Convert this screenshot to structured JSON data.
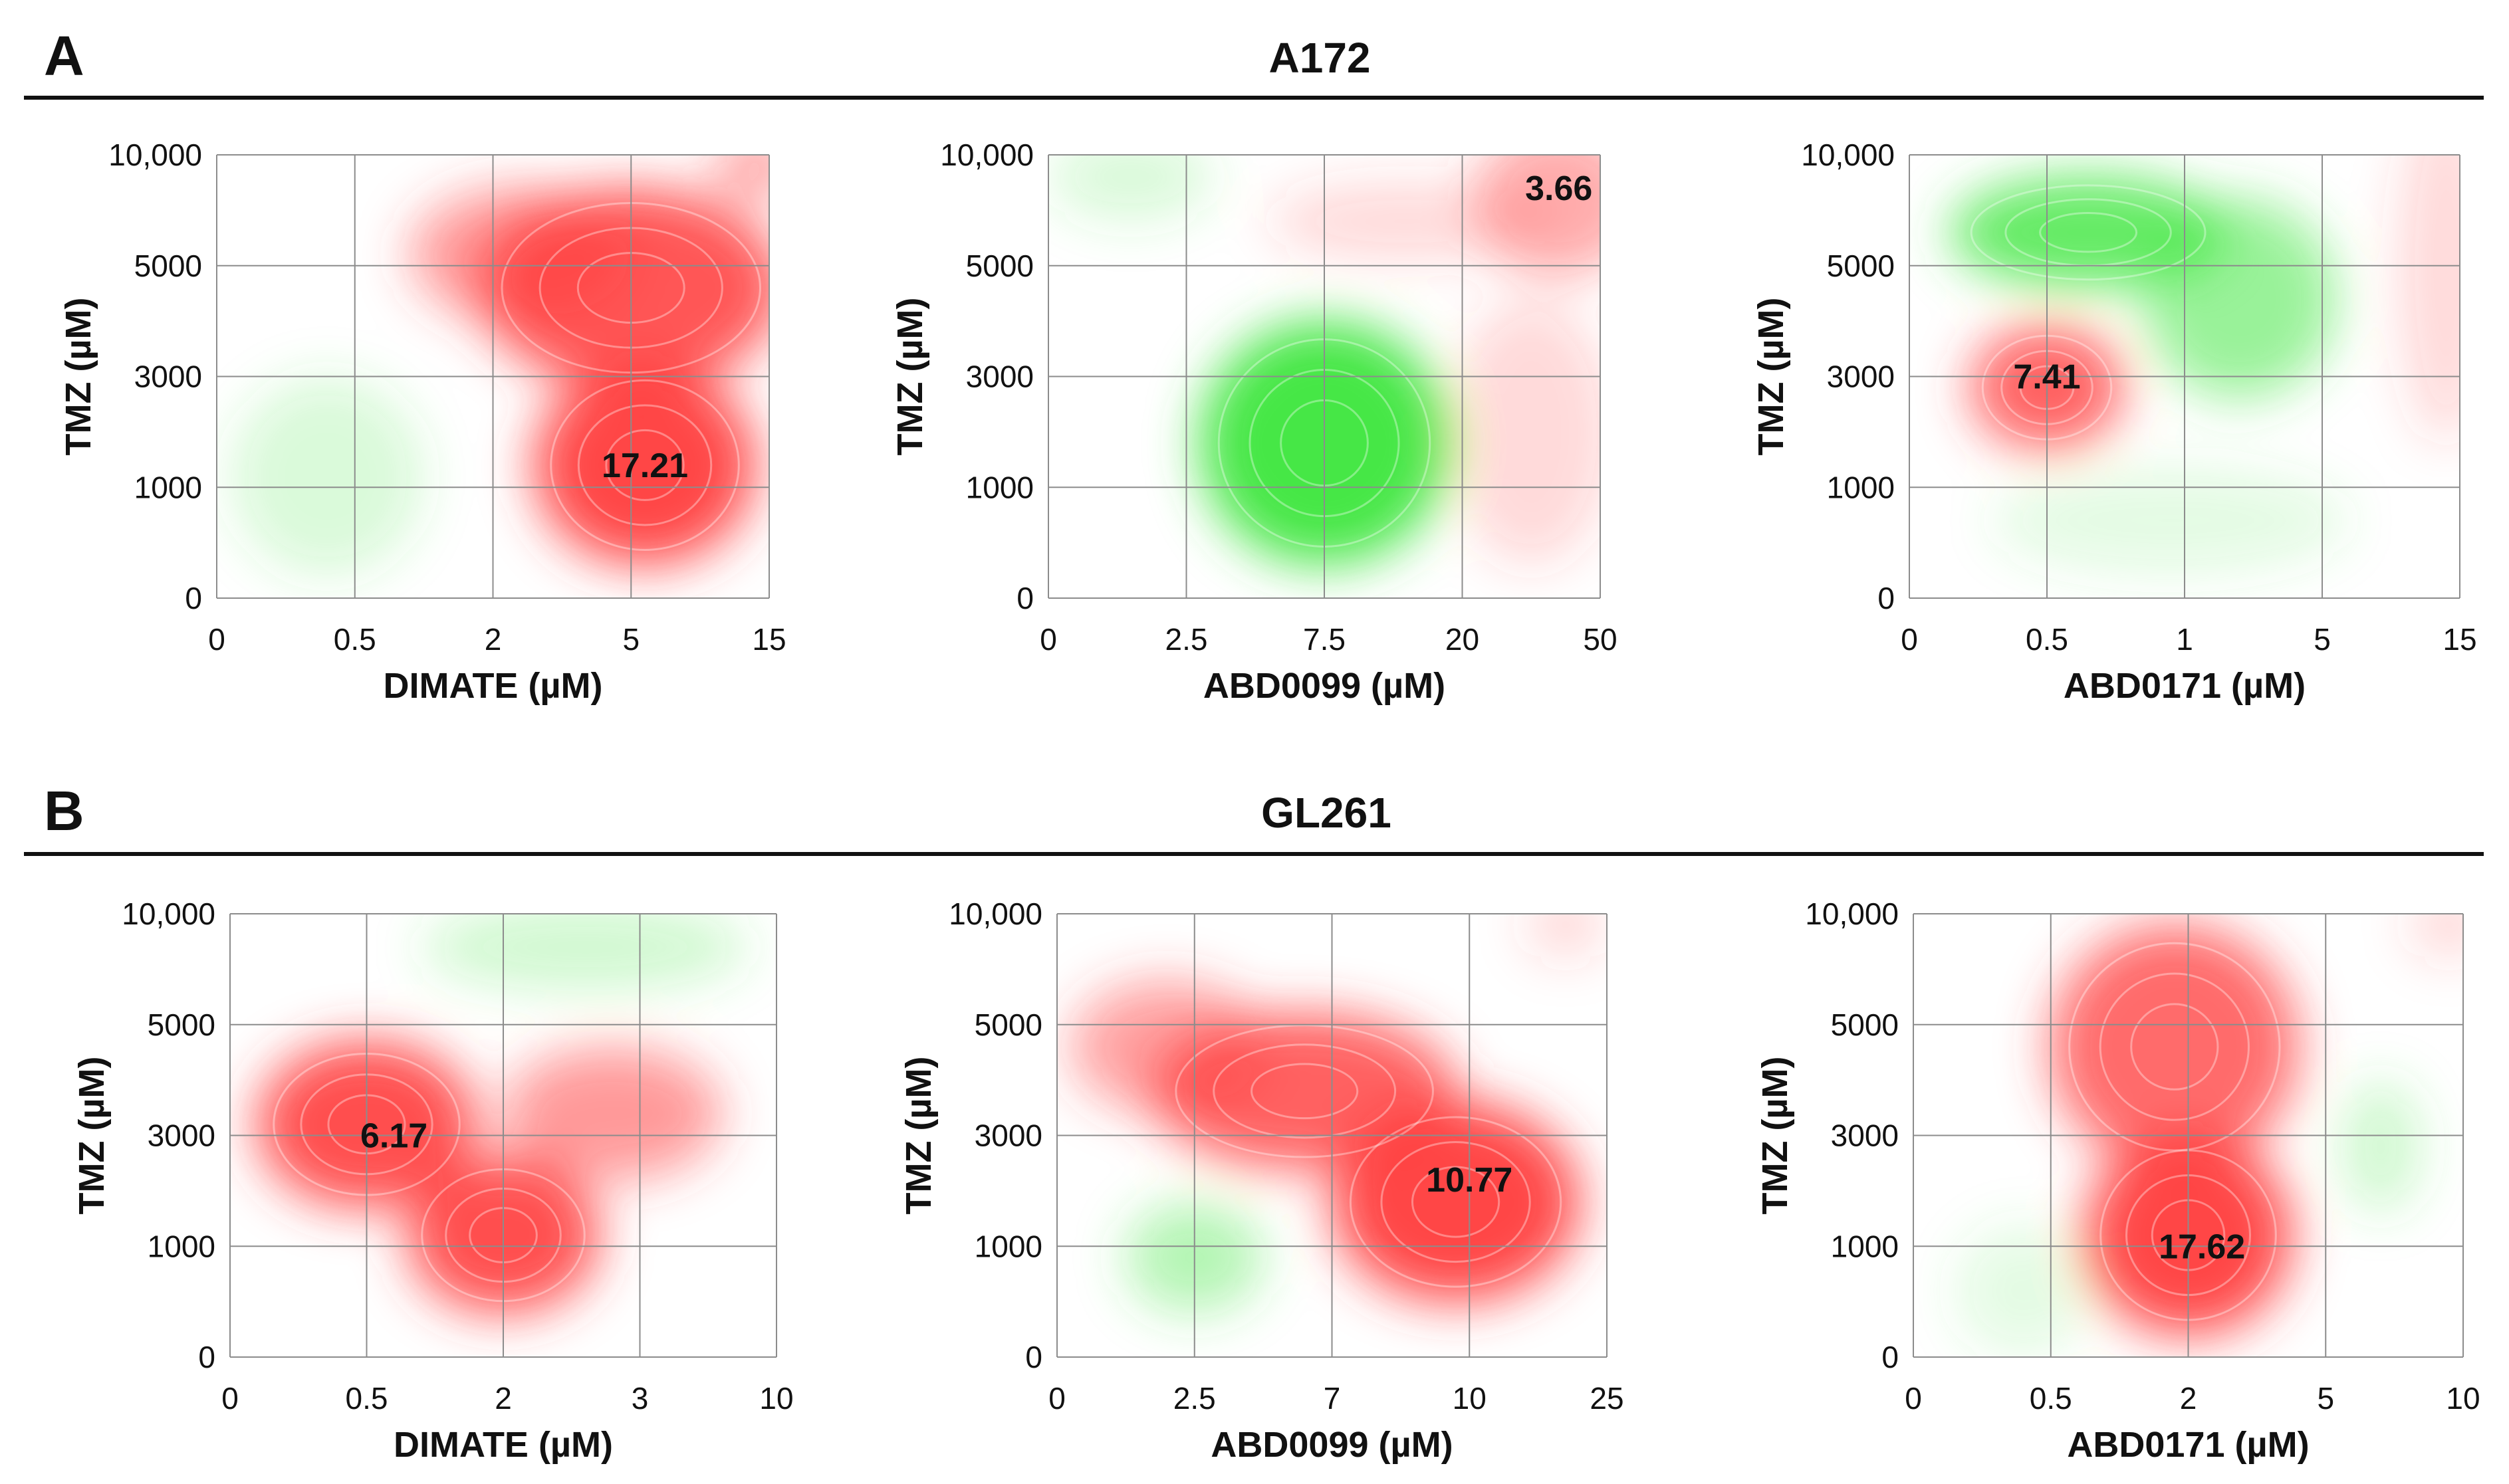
{
  "rows": [
    {
      "letter": "A",
      "title": "A172"
    },
    {
      "letter": "B",
      "title": "GL261"
    }
  ],
  "colors": {
    "synergy": "#ff3b3b",
    "antagonism": "#3de63d",
    "grid": "#8c8c8c",
    "text": "#111111"
  },
  "chart_data": [
    {
      "type": "heatmap",
      "panel": "A",
      "cell_line": "A172",
      "xlabel": "DIMATE (µM)",
      "ylabel": "TMZ (µM)",
      "x_ticks": [
        "0",
        "0.5",
        "2",
        "5",
        "15"
      ],
      "y_ticks": [
        "0",
        "1000",
        "3000",
        "5000",
        "10,000"
      ],
      "peak_label": "17.21",
      "peak_at": [
        3.1,
        1.2
      ],
      "blobs": [
        {
          "cx": 3.1,
          "cy": 1.2,
          "rx": 0.8,
          "ry": 0.9,
          "strength": 1.0,
          "type": "synergy"
        },
        {
          "cx": 3.0,
          "cy": 2.8,
          "rx": 1.1,
          "ry": 0.9,
          "strength": 0.9,
          "type": "synergy"
        },
        {
          "cx": 2.2,
          "cy": 3.1,
          "rx": 0.8,
          "ry": 0.6,
          "strength": 0.55,
          "type": "synergy"
        },
        {
          "cx": 3.9,
          "cy": 3.9,
          "rx": 0.3,
          "ry": 0.3,
          "strength": 0.5,
          "type": "synergy"
        },
        {
          "cx": 0.8,
          "cy": 1.1,
          "rx": 0.7,
          "ry": 0.9,
          "strength": 0.2,
          "type": "antagonism"
        }
      ]
    },
    {
      "type": "heatmap",
      "panel": "A",
      "cell_line": "A172",
      "xlabel": "ABD0099 (µM)",
      "ylabel": "TMZ (µM)",
      "x_ticks": [
        "0",
        "2.5",
        "7.5",
        "20",
        "50"
      ],
      "y_ticks": [
        "0",
        "1000",
        "3000",
        "5000",
        "10,000"
      ],
      "peak_label": "3.66",
      "peak_at": [
        3.7,
        3.7
      ],
      "blobs": [
        {
          "cx": 2.0,
          "cy": 1.4,
          "rx": 0.9,
          "ry": 1.1,
          "strength": 1.0,
          "type": "antagonism"
        },
        {
          "cx": 0.6,
          "cy": 3.8,
          "rx": 0.6,
          "ry": 0.4,
          "strength": 0.2,
          "type": "antagonism"
        },
        {
          "cx": 3.7,
          "cy": 3.6,
          "rx": 0.6,
          "ry": 0.7,
          "strength": 0.45,
          "type": "synergy"
        },
        {
          "cx": 2.6,
          "cy": 3.4,
          "rx": 1.0,
          "ry": 0.35,
          "strength": 0.2,
          "type": "synergy"
        },
        {
          "cx": 3.5,
          "cy": 1.5,
          "rx": 0.6,
          "ry": 1.2,
          "strength": 0.2,
          "type": "synergy"
        }
      ]
    },
    {
      "type": "heatmap",
      "panel": "A",
      "cell_line": "A172",
      "xlabel": "ABD0171 (µM)",
      "ylabel": "TMZ (µM)",
      "x_ticks": [
        "0",
        "0.5",
        "1",
        "5",
        "15"
      ],
      "y_ticks": [
        "0",
        "1000",
        "3000",
        "5000",
        "10,000"
      ],
      "peak_label": "7.41",
      "peak_at": [
        1.0,
        2.0
      ],
      "blobs": [
        {
          "cx": 1.0,
          "cy": 1.9,
          "rx": 0.55,
          "ry": 0.55,
          "strength": 0.85,
          "type": "synergy"
        },
        {
          "cx": 3.9,
          "cy": 3.0,
          "rx": 0.35,
          "ry": 1.6,
          "strength": 0.2,
          "type": "synergy"
        },
        {
          "cx": 1.3,
          "cy": 3.3,
          "rx": 1.0,
          "ry": 0.5,
          "strength": 0.85,
          "type": "antagonism"
        },
        {
          "cx": 2.4,
          "cy": 2.7,
          "rx": 0.7,
          "ry": 0.9,
          "strength": 0.55,
          "type": "antagonism"
        },
        {
          "cx": 1.9,
          "cy": 0.7,
          "rx": 1.3,
          "ry": 0.5,
          "strength": 0.15,
          "type": "antagonism"
        }
      ]
    },
    {
      "type": "heatmap",
      "panel": "B",
      "cell_line": "GL261",
      "xlabel": "DIMATE (µM)",
      "ylabel": "TMZ (µM)",
      "x_ticks": [
        "0",
        "0.5",
        "2",
        "3",
        "10"
      ],
      "y_ticks": [
        "0",
        "1000",
        "3000",
        "5000",
        "10,000"
      ],
      "peak_label": "6.17",
      "peak_at": [
        1.2,
        2.0
      ],
      "blobs": [
        {
          "cx": 1.0,
          "cy": 2.1,
          "rx": 0.8,
          "ry": 0.75,
          "strength": 0.95,
          "type": "synergy"
        },
        {
          "cx": 2.0,
          "cy": 1.1,
          "rx": 0.7,
          "ry": 0.7,
          "strength": 0.95,
          "type": "synergy"
        },
        {
          "cx": 2.8,
          "cy": 2.2,
          "rx": 0.8,
          "ry": 0.6,
          "strength": 0.55,
          "type": "synergy"
        },
        {
          "cx": 2.6,
          "cy": 3.7,
          "rx": 1.2,
          "ry": 0.4,
          "strength": 0.25,
          "type": "antagonism"
        }
      ]
    },
    {
      "type": "heatmap",
      "panel": "B",
      "cell_line": "GL261",
      "xlabel": "ABD0099 (µM)",
      "ylabel": "TMZ (µM)",
      "x_ticks": [
        "0",
        "2.5",
        "7",
        "10",
        "25"
      ],
      "y_ticks": [
        "0",
        "1000",
        "3000",
        "5000",
        "10,000"
      ],
      "peak_label": "10.77",
      "peak_at": [
        3.0,
        1.6
      ],
      "blobs": [
        {
          "cx": 2.9,
          "cy": 1.4,
          "rx": 0.9,
          "ry": 0.9,
          "strength": 1.0,
          "type": "synergy"
        },
        {
          "cx": 1.8,
          "cy": 2.4,
          "rx": 1.1,
          "ry": 0.7,
          "strength": 0.85,
          "type": "synergy"
        },
        {
          "cx": 0.8,
          "cy": 2.8,
          "rx": 0.7,
          "ry": 0.6,
          "strength": 0.5,
          "type": "synergy"
        },
        {
          "cx": 3.7,
          "cy": 3.9,
          "rx": 0.3,
          "ry": 0.3,
          "strength": 0.2,
          "type": "synergy"
        },
        {
          "cx": 1.0,
          "cy": 0.9,
          "rx": 0.5,
          "ry": 0.5,
          "strength": 0.4,
          "type": "antagonism"
        }
      ]
    },
    {
      "type": "heatmap",
      "panel": "B",
      "cell_line": "GL261",
      "xlabel": "ABD0171 (µM)",
      "ylabel": "TMZ (µM)",
      "x_ticks": [
        "0",
        "0.5",
        "2",
        "5",
        "10"
      ],
      "y_ticks": [
        "0",
        "1000",
        "3000",
        "5000",
        "10,000"
      ],
      "peak_label": "17.62",
      "peak_at": [
        2.1,
        1.0
      ],
      "blobs": [
        {
          "cx": 2.0,
          "cy": 1.1,
          "rx": 0.75,
          "ry": 0.9,
          "strength": 1.0,
          "type": "synergy"
        },
        {
          "cx": 1.9,
          "cy": 2.8,
          "rx": 0.9,
          "ry": 1.1,
          "strength": 0.8,
          "type": "synergy"
        },
        {
          "cx": 3.9,
          "cy": 3.9,
          "rx": 0.3,
          "ry": 0.3,
          "strength": 0.2,
          "type": "synergy"
        },
        {
          "cx": 3.4,
          "cy": 1.9,
          "rx": 0.3,
          "ry": 0.6,
          "strength": 0.25,
          "type": "antagonism"
        },
        {
          "cx": 0.8,
          "cy": 0.6,
          "rx": 0.5,
          "ry": 0.6,
          "strength": 0.15,
          "type": "antagonism"
        }
      ]
    }
  ]
}
